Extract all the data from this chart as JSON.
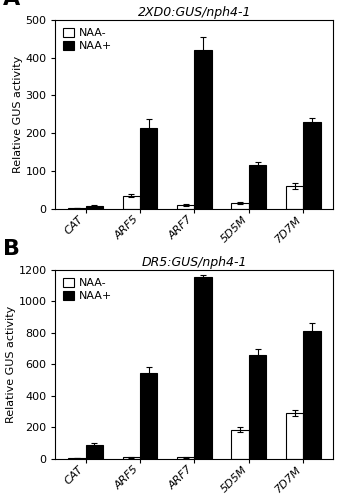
{
  "panel_A": {
    "title": "2XD0:GUS/nph4-1",
    "categories": [
      "CAT",
      "ARF5",
      "ARF7",
      "5D5M",
      "7D7M"
    ],
    "naa_minus": [
      2,
      35,
      10,
      15,
      60
    ],
    "naa_plus": [
      8,
      215,
      420,
      115,
      230
    ],
    "naa_minus_err": [
      0.5,
      5,
      2,
      3,
      8
    ],
    "naa_plus_err": [
      1,
      22,
      35,
      8,
      10
    ],
    "ylim": [
      0,
      500
    ],
    "yticks": [
      0,
      100,
      200,
      300,
      400,
      500
    ]
  },
  "panel_B": {
    "title": "DR5:GUS/nph4-1",
    "categories": [
      "CAT",
      "ARF5",
      "ARF7",
      "5D5M",
      "7D7M"
    ],
    "naa_minus": [
      5,
      10,
      10,
      185,
      290
    ],
    "naa_plus": [
      90,
      545,
      1155,
      660,
      810
    ],
    "naa_minus_err": [
      1,
      2,
      2,
      15,
      20
    ],
    "naa_plus_err": [
      8,
      40,
      10,
      35,
      55
    ],
    "ylim": [
      0,
      1200
    ],
    "yticks": [
      0,
      200,
      400,
      600,
      800,
      1000,
      1200
    ]
  },
  "ylabel": "Relative GUS activity",
  "bar_width": 0.32,
  "color_minus": "#ffffff",
  "color_plus": "#000000",
  "edge_color": "#000000",
  "legend_labels": [
    "NAA-",
    "NAA+"
  ],
  "background_color": "#ffffff"
}
